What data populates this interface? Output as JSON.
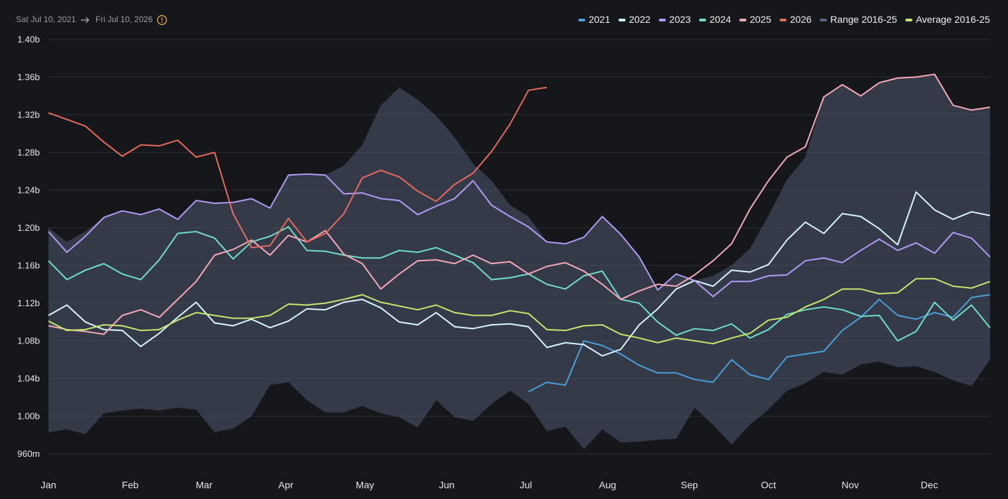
{
  "chart_data": {
    "type": "line",
    "date_range": [
      "Sat Jul 10, 2021",
      "Fri Jul 10, 2026"
    ],
    "x": [
      1,
      8,
      15,
      22,
      29,
      36,
      43,
      50,
      57,
      64,
      71,
      78,
      85,
      92,
      99,
      106,
      113,
      120,
      127,
      134,
      141,
      148,
      155,
      162,
      169,
      176,
      183,
      190,
      197,
      204,
      211,
      218,
      225,
      232,
      239,
      246,
      253,
      260,
      267,
      274,
      281,
      288,
      295,
      302,
      309,
      316,
      323,
      330,
      337,
      344,
      351,
      358
    ],
    "xlim": [
      1,
      358
    ],
    "xticks": [
      {
        "value": 1,
        "label": "Jan"
      },
      {
        "value": 32,
        "label": "Feb"
      },
      {
        "value": 60,
        "label": "Mar"
      },
      {
        "value": 91,
        "label": "Apr"
      },
      {
        "value": 121,
        "label": "May"
      },
      {
        "value": 152,
        "label": "Jun"
      },
      {
        "value": 182,
        "label": "Jul"
      },
      {
        "value": 213,
        "label": "Aug"
      },
      {
        "value": 244,
        "label": "Sep"
      },
      {
        "value": 274,
        "label": "Oct"
      },
      {
        "value": 305,
        "label": "Nov"
      },
      {
        "value": 335,
        "label": "Dec"
      }
    ],
    "ylim": [
      0.94,
      1.4
    ],
    "yticks": [
      {
        "value": 0.96,
        "label": "960m"
      },
      {
        "value": 1.0,
        "label": "1.00b"
      },
      {
        "value": 1.04,
        "label": "1.04b"
      },
      {
        "value": 1.08,
        "label": "1.08b"
      },
      {
        "value": 1.12,
        "label": "1.12b"
      },
      {
        "value": 1.16,
        "label": "1.16b"
      },
      {
        "value": 1.2,
        "label": "1.20b"
      },
      {
        "value": 1.24,
        "label": "1.24b"
      },
      {
        "value": 1.28,
        "label": "1.28b"
      },
      {
        "value": 1.32,
        "label": "1.32b"
      },
      {
        "value": 1.36,
        "label": "1.36b"
      },
      {
        "value": 1.4,
        "label": "1.40b"
      }
    ],
    "grid": true,
    "legend": "top-right",
    "series": [
      {
        "name": "2021",
        "color": "#4a9fd8",
        "values": [
          null,
          null,
          null,
          null,
          null,
          null,
          null,
          null,
          null,
          null,
          null,
          null,
          null,
          null,
          null,
          null,
          null,
          null,
          null,
          null,
          null,
          null,
          null,
          null,
          null,
          null,
          1.026,
          1.036,
          1.033,
          1.08,
          1.075,
          1.066,
          1.054,
          1.046,
          1.046,
          1.039,
          1.036,
          1.06,
          1.044,
          1.039,
          1.063,
          1.066,
          1.069,
          1.091,
          1.105,
          1.124,
          1.107,
          1.103,
          1.11,
          1.105,
          1.126,
          1.129
        ]
      },
      {
        "name": "2022",
        "color": "#d8f6ff",
        "values": [
          1.107,
          1.118,
          1.1,
          1.092,
          1.091,
          1.074,
          1.088,
          1.105,
          1.121,
          1.099,
          1.096,
          1.103,
          1.094,
          1.101,
          1.114,
          1.113,
          1.121,
          1.124,
          1.115,
          1.1,
          1.097,
          1.11,
          1.095,
          1.093,
          1.097,
          1.098,
          1.095,
          1.073,
          1.078,
          1.076,
          1.064,
          1.071,
          1.097,
          1.114,
          1.135,
          1.144,
          1.138,
          1.155,
          1.153,
          1.161,
          1.187,
          1.206,
          1.194,
          1.215,
          1.212,
          1.199,
          1.182,
          1.238,
          1.219,
          1.209,
          1.217,
          1.213
        ]
      },
      {
        "name": "2023",
        "color": "#b19cf5",
        "values": [
          1.196,
          1.174,
          1.191,
          1.211,
          1.218,
          1.214,
          1.22,
          1.209,
          1.229,
          1.226,
          1.227,
          1.231,
          1.221,
          1.256,
          1.257,
          1.256,
          1.236,
          1.237,
          1.231,
          1.229,
          1.214,
          1.223,
          1.231,
          1.25,
          1.224,
          1.212,
          1.201,
          1.185,
          1.183,
          1.19,
          1.212,
          1.193,
          1.169,
          1.134,
          1.151,
          1.144,
          1.127,
          1.143,
          1.143,
          1.149,
          1.15,
          1.165,
          1.168,
          1.163,
          1.176,
          1.188,
          1.176,
          1.184,
          1.173,
          1.195,
          1.189,
          1.169
        ]
      },
      {
        "name": "2024",
        "color": "#6ee0c8",
        "values": [
          1.165,
          1.145,
          1.155,
          1.162,
          1.151,
          1.145,
          1.166,
          1.194,
          1.196,
          1.189,
          1.167,
          1.185,
          1.191,
          1.201,
          1.176,
          1.175,
          1.171,
          1.168,
          1.168,
          1.176,
          1.174,
          1.179,
          1.171,
          1.163,
          1.145,
          1.147,
          1.151,
          1.14,
          1.135,
          1.149,
          1.154,
          1.124,
          1.12,
          1.1,
          1.086,
          1.093,
          1.091,
          1.098,
          1.083,
          1.092,
          1.108,
          1.113,
          1.116,
          1.113,
          1.106,
          1.107,
          1.08,
          1.09,
          1.121,
          1.102,
          1.118,
          1.094
        ]
      },
      {
        "name": "2025",
        "color": "#f7a9b8",
        "values": [
          1.096,
          1.092,
          1.09,
          1.087,
          1.107,
          1.113,
          1.105,
          1.124,
          1.143,
          1.171,
          1.177,
          1.187,
          1.171,
          1.192,
          1.185,
          1.197,
          1.172,
          1.162,
          1.135,
          1.151,
          1.165,
          1.166,
          1.162,
          1.171,
          1.162,
          1.164,
          1.151,
          1.159,
          1.163,
          1.154,
          1.14,
          1.124,
          1.133,
          1.14,
          1.138,
          1.15,
          1.165,
          1.183,
          1.22,
          1.25,
          1.275,
          1.286,
          1.339,
          1.352,
          1.34,
          1.354,
          1.359,
          1.36,
          1.363,
          1.33,
          1.325,
          1.328
        ]
      },
      {
        "name": "2026",
        "color": "#e8695e",
        "values": [
          1.322,
          1.315,
          1.308,
          1.291,
          1.276,
          1.288,
          1.287,
          1.293,
          1.275,
          1.28,
          1.215,
          1.179,
          1.181,
          1.21,
          1.185,
          1.194,
          1.215,
          1.253,
          1.261,
          1.254,
          1.239,
          1.228,
          1.246,
          1.258,
          1.281,
          1.31,
          1.346,
          1.349,
          null,
          null,
          null,
          null,
          null,
          null,
          null,
          null,
          null,
          null,
          null,
          null,
          null,
          null,
          null,
          null,
          null,
          null,
          null,
          null,
          null,
          null,
          null,
          null
        ]
      },
      {
        "name": "Range 2016-25",
        "color": "#5b6582",
        "upper": [
          1.2,
          1.185,
          1.196,
          1.211,
          1.218,
          1.214,
          1.22,
          1.209,
          1.229,
          1.226,
          1.227,
          1.231,
          1.221,
          1.256,
          1.257,
          1.256,
          1.266,
          1.288,
          1.33,
          1.349,
          1.336,
          1.319,
          1.296,
          1.268,
          1.25,
          1.224,
          1.212,
          1.185,
          1.183,
          1.19,
          1.212,
          1.193,
          1.169,
          1.134,
          1.151,
          1.144,
          1.149,
          1.16,
          1.178,
          1.213,
          1.251,
          1.275,
          1.339,
          1.352,
          1.34,
          1.354,
          1.359,
          1.36,
          1.363,
          1.33,
          1.325,
          1.328
        ],
        "lower": [
          0.983,
          0.986,
          0.981,
          1.003,
          1.006,
          1.008,
          1.006,
          1.009,
          1.007,
          0.983,
          0.987,
          1.0,
          1.033,
          1.036,
          1.017,
          1.004,
          1.004,
          1.011,
          1.003,
          0.999,
          0.988,
          1.017,
          0.999,
          0.995,
          1.013,
          1.027,
          1.013,
          0.984,
          0.989,
          0.965,
          0.986,
          0.972,
          0.973,
          0.975,
          0.976,
          1.009,
          0.991,
          0.97,
          0.991,
          1.007,
          1.027,
          1.035,
          1.047,
          1.044,
          1.055,
          1.058,
          1.052,
          1.053,
          1.047,
          1.038,
          1.032,
          1.06
        ]
      },
      {
        "name": "Average 2016-25",
        "color": "#c5e76b",
        "values": [
          1.101,
          1.091,
          1.092,
          1.097,
          1.096,
          1.091,
          1.092,
          1.102,
          1.11,
          1.107,
          1.104,
          1.104,
          1.107,
          1.119,
          1.118,
          1.12,
          1.124,
          1.129,
          1.121,
          1.117,
          1.113,
          1.118,
          1.11,
          1.107,
          1.107,
          1.112,
          1.109,
          1.092,
          1.091,
          1.096,
          1.097,
          1.087,
          1.083,
          1.078,
          1.083,
          1.08,
          1.077,
          1.083,
          1.088,
          1.102,
          1.105,
          1.116,
          1.124,
          1.135,
          1.135,
          1.13,
          1.131,
          1.146,
          1.146,
          1.138,
          1.136,
          1.143
        ]
      }
    ]
  }
}
